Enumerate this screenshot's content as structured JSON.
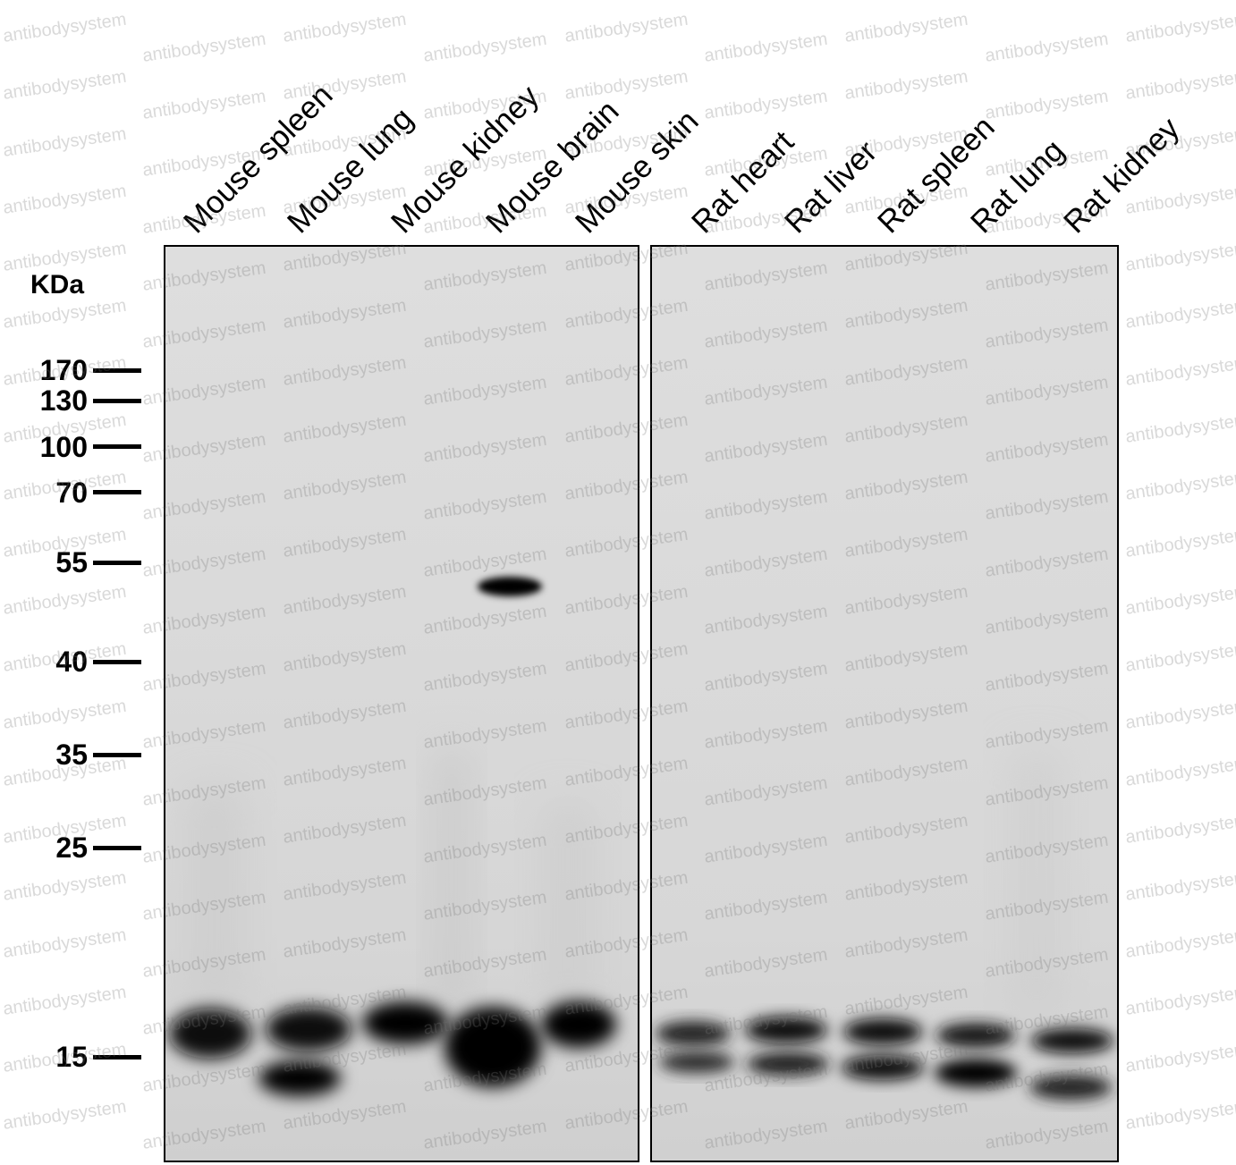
{
  "figure": {
    "unit_label": "KDa",
    "watermark_text": "antibodysystem",
    "lanes": [
      {
        "label": "Mouse spleen"
      },
      {
        "label": "Mouse lung"
      },
      {
        "label": "Mouse kidney"
      },
      {
        "label": "Mouse brain"
      },
      {
        "label": "Mouse skin"
      },
      {
        "label": "Rat heart"
      },
      {
        "label": "Rat liver"
      },
      {
        "label": "Rat spleen"
      },
      {
        "label": "Rat lung"
      },
      {
        "label": "Rat kidney"
      }
    ],
    "markers": [
      {
        "label": "170",
        "kda": 170
      },
      {
        "label": "130",
        "kda": 130
      },
      {
        "label": "100",
        "kda": 100
      },
      {
        "label": "70",
        "kda": 70
      },
      {
        "label": "55",
        "kda": 55
      },
      {
        "label": "40",
        "kda": 40
      },
      {
        "label": "35",
        "kda": 35
      },
      {
        "label": "25",
        "kda": 25
      },
      {
        "label": "15",
        "kda": 15
      }
    ],
    "colors": {
      "membrane": "#dcdcdc",
      "band": "#000000",
      "watermark": "#787878"
    }
  }
}
